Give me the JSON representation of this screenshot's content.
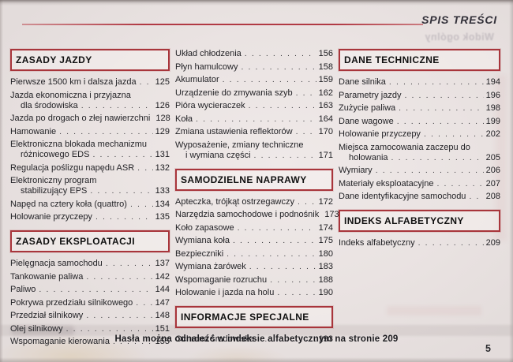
{
  "page": {
    "header_title": "SPIS TREŚCI",
    "ghost_text": "Widok ogólny",
    "footer_note": "Hasła można odnaleźć w indeksie alfabetycznym na stronie 209",
    "page_number": "5"
  },
  "colors": {
    "accent_red": "#a8353b",
    "paper": "#eae3e2",
    "text": "#232327"
  },
  "columns": [
    {
      "items": [
        {
          "type": "header",
          "label": "ZASADY JAZDY"
        },
        {
          "type": "entry",
          "title": "Pierwsze 1500 km i dalsza jazda",
          "page": "125"
        },
        {
          "type": "entry",
          "title": "Jazda ekonomiczna i przyjazna",
          "title2": "dla środowiska",
          "page": "126"
        },
        {
          "type": "entry",
          "title": "Jazda po drogach o złej nawierzchni",
          "page": "128"
        },
        {
          "type": "entry",
          "title": "Hamowanie",
          "page": "129"
        },
        {
          "type": "entry",
          "title": "Elektroniczna blokada mechanizmu",
          "title2": "różnicowego EDS",
          "page": "131"
        },
        {
          "type": "entry",
          "title": "Regulacja poślizgu napędu ASR",
          "page": "132"
        },
        {
          "type": "entry",
          "title": "Elektroniczny program",
          "title2": "stabilizujący EPS",
          "page": "133"
        },
        {
          "type": "entry",
          "title": "Napęd na cztery koła (quattro)",
          "page": "134"
        },
        {
          "type": "entry",
          "title": "Holowanie przyczepy",
          "page": "135"
        },
        {
          "type": "header",
          "label": "ZASADY EKSPLOATACJI"
        },
        {
          "type": "entry",
          "title": "Pielęgnacja samochodu",
          "page": "137"
        },
        {
          "type": "entry",
          "title": "Tankowanie paliwa",
          "page": "142"
        },
        {
          "type": "entry",
          "title": "Paliwo",
          "page": "144"
        },
        {
          "type": "entry",
          "title": "Pokrywa przedziału silnikowego",
          "page": "147"
        },
        {
          "type": "entry",
          "title": "Przedział silnikowy",
          "page": "148"
        },
        {
          "type": "entry",
          "title": "Olej silnikowy",
          "page": "151"
        },
        {
          "type": "entry",
          "title": "Wspomaganie kierowania",
          "page": "155"
        }
      ]
    },
    {
      "items": [
        {
          "type": "entry",
          "title": "Układ chłodzenia",
          "page": "156"
        },
        {
          "type": "entry",
          "title": "Płyn hamulcowy",
          "page": "158"
        },
        {
          "type": "entry",
          "title": "Akumulator",
          "page": "159"
        },
        {
          "type": "entry",
          "title": "Urządzenie do zmywania szyb",
          "page": "162"
        },
        {
          "type": "entry",
          "title": "Pióra wycieraczek",
          "page": "163"
        },
        {
          "type": "entry",
          "title": "Koła",
          "page": "164"
        },
        {
          "type": "entry",
          "title": "Zmiana ustawienia reflektorów",
          "page": "170"
        },
        {
          "type": "entry",
          "title": "Wyposażenie, zmiany techniczne",
          "title2": "i wymiana części",
          "page": "171"
        },
        {
          "type": "header",
          "label": "SAMODZIELNE NAPRAWY"
        },
        {
          "type": "entry",
          "title": "Apteczka, trójkąt ostrzegawczy",
          "page": "172"
        },
        {
          "type": "entry",
          "title": "Narzędzia samochodowe i podnośnik",
          "page": "173"
        },
        {
          "type": "entry",
          "title": "Koło zapasowe",
          "page": "174"
        },
        {
          "type": "entry",
          "title": "Wymiana koła",
          "page": "175"
        },
        {
          "type": "entry",
          "title": "Bezpieczniki",
          "page": "180"
        },
        {
          "type": "entry",
          "title": "Wymiana żarówek",
          "page": "183"
        },
        {
          "type": "entry",
          "title": "Wspomaganie rozruchu",
          "page": "188"
        },
        {
          "type": "entry",
          "title": "Holowanie i jazda na holu",
          "page": "190"
        },
        {
          "type": "header",
          "label": "INFORMACJE SPECJALNE"
        },
        {
          "type": "entry",
          "title": "Ochrona środowiska",
          "page": "193"
        }
      ]
    },
    {
      "items": [
        {
          "type": "header",
          "label": "DANE TECHNICZNE"
        },
        {
          "type": "entry",
          "title": "Dane silnika",
          "page": "194"
        },
        {
          "type": "entry",
          "title": "Parametry jazdy",
          "page": "196"
        },
        {
          "type": "entry",
          "title": "Zużycie paliwa",
          "page": "198"
        },
        {
          "type": "entry",
          "title": "Dane wagowe",
          "page": "199"
        },
        {
          "type": "entry",
          "title": "Holowanie przyczepy",
          "page": "202"
        },
        {
          "type": "entry",
          "title": "Miejsca zamocowania zaczepu do",
          "title2": "holowania",
          "page": "205"
        },
        {
          "type": "entry",
          "title": "Wymiary",
          "page": "206"
        },
        {
          "type": "entry",
          "title": "Materiały eksploatacyjne",
          "page": "207"
        },
        {
          "type": "entry",
          "title": "Dane identyfikacyjne samochodu",
          "page": "208"
        },
        {
          "type": "header",
          "label": "INDEKS ALFABETYCZNY"
        },
        {
          "type": "entry",
          "title": "Indeks alfabetyczny",
          "page": "209"
        }
      ]
    }
  ]
}
